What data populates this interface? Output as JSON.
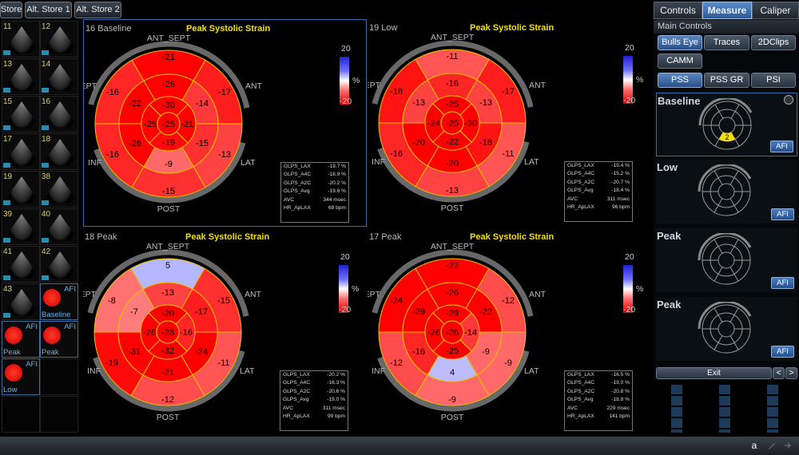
{
  "top_tabs": [
    "Store",
    "Alt. Store 1",
    "Alt. Store 2"
  ],
  "thumbnails": {
    "numbers": [
      "11",
      "12",
      "13",
      "14",
      "15",
      "16",
      "17",
      "18",
      "19",
      "38",
      "39",
      "40",
      "41",
      "42",
      "43"
    ],
    "bulls": [
      {
        "num": "16",
        "label": "Baseline",
        "afi": "AFI"
      },
      {
        "num": "17",
        "label": "Peak",
        "afi": "AFI"
      },
      {
        "num": "18",
        "label": "Peak",
        "afi": "AFI"
      },
      {
        "num": "19",
        "label": "Low",
        "afi": "AFI"
      }
    ]
  },
  "quadrants": [
    {
      "header": "16  Baseline",
      "title": "Peak Systolic Strain",
      "scale_top": "20",
      "scale_unit": "%",
      "scale_bottom": "-20",
      "labels": {
        "top": "ANT_SEPT",
        "left_top": "SEPT",
        "right_top": "ANT",
        "left_bot": "INF",
        "right_bot": "LAT",
        "bottom": "POST"
      },
      "values": [
        "-21",
        "-17",
        "-13",
        "-15",
        "-16",
        "-16",
        "-26",
        "-14",
        "-15",
        "-9",
        "-26",
        "-22",
        "-30",
        "-21",
        "-19",
        "-25",
        "-25"
      ],
      "stats": [
        [
          "GLPS_LAX",
          "-19.7 %"
        ],
        [
          "GLPS_A4C",
          "-18.9 %"
        ],
        [
          "GLPS_A2C",
          "-20.2 %"
        ],
        [
          "GLPS_Avg",
          "-19.6 %"
        ],
        [
          "AVC",
          "344 msec"
        ],
        [
          "HR_ApLAX",
          "68 bpm"
        ]
      ]
    },
    {
      "header": "19  Low",
      "title": "Peak Systolic Strain",
      "scale_top": "20",
      "scale_unit": "%",
      "scale_bottom": "-20",
      "labels": {
        "top": "ANT_SEPT",
        "left_top": "SEPT",
        "right_top": "ANT",
        "left_bot": "INF",
        "right_bot": "LAT",
        "bottom": "POST"
      },
      "values": [
        "-11",
        "-17",
        "-11",
        "-13",
        "-16",
        "-18",
        "-16",
        "-13",
        "-18",
        "-20",
        "-20",
        "-13",
        "-25",
        "-30",
        "-22",
        "-24",
        "-25"
      ],
      "stats": [
        [
          "GLPS_LAX",
          "-19.4 %"
        ],
        [
          "GLPS_A4C",
          "-15.2 %"
        ],
        [
          "GLPS_A2C",
          "-20.7 %"
        ],
        [
          "GLPS_Avg",
          "-18.4 %"
        ],
        [
          "AVC",
          "311 msec"
        ],
        [
          "HR_ApLAX",
          "96 bpm"
        ]
      ]
    },
    {
      "header": "18  Peak",
      "title": "Peak Systolic Strain",
      "scale_top": "20",
      "scale_unit": "%",
      "scale_bottom": "-20",
      "labels": {
        "top": "ANT_SEPT",
        "left_top": "SEPT",
        "right_top": "ANT",
        "left_bot": "INF",
        "right_bot": "LAT",
        "bottom": "POST"
      },
      "values": [
        "5",
        "-15",
        "-11",
        "-12",
        "-19",
        "-8",
        "-13",
        "-17",
        "-24",
        "-21",
        "-31",
        "-7",
        "-20",
        "-16",
        "-32",
        "-28",
        "-28"
      ],
      "stats": [
        [
          "GLPS_LAX",
          "-20.2 %"
        ],
        [
          "GLPS_A4C",
          "-16.3 %"
        ],
        [
          "GLPS_A2C",
          "-20.6 %"
        ],
        [
          "GLPS_Avg",
          "-19.0 %"
        ],
        [
          "AVC",
          "311 msec"
        ],
        [
          "HR_ApLAX",
          "99 bpm"
        ]
      ]
    },
    {
      "header": "17  Peak",
      "title": "Peak Systolic Strain",
      "scale_top": "20",
      "scale_unit": "%",
      "scale_bottom": "-20",
      "labels": {
        "top": "ANT_SEPT",
        "left_top": "SEPT",
        "right_top": "ANT",
        "left_bot": "INF",
        "right_bot": "LAT",
        "bottom": "POST"
      },
      "values": [
        "-22",
        "-12",
        "-9",
        "-9",
        "-12",
        "-24",
        "-26",
        "-22",
        "-9",
        "4",
        "-16",
        "-29",
        "-29",
        "-14",
        "-25",
        "-26",
        "-26"
      ],
      "stats": [
        [
          "GLPS_LAX",
          "-16.5 %"
        ],
        [
          "GLPS_A4C",
          "-19.0 %"
        ],
        [
          "GLPS_A2C",
          "-20.8 %"
        ],
        [
          "GLPS_Avg",
          "-18.8 %"
        ],
        [
          "AVC",
          "229 msec"
        ],
        [
          "HR_ApLAX",
          "141 bpm"
        ]
      ]
    }
  ],
  "right_panel": {
    "tabs": [
      "Controls",
      "Measure",
      "Caliper"
    ],
    "section": "Main Controls",
    "row1": [
      "Bulls Eye",
      "Traces",
      "2DClips"
    ],
    "row2": [
      "CAMM"
    ],
    "row3": [
      "PSS",
      "PSS GR",
      "PSI"
    ],
    "cards": [
      {
        "name": "Baseline",
        "afi": "AFI",
        "badge": "2"
      },
      {
        "name": "Low",
        "afi": "AFI"
      },
      {
        "name": "Peak",
        "afi": "AFI"
      },
      {
        "name": "Peak",
        "afi": "AFI"
      }
    ],
    "exit": "Exit",
    "prev": "<",
    "next": ">"
  },
  "status_letter": "a",
  "colors": {
    "accent": "#2a6fc0",
    "title": "#f5e000",
    "strain": "#e00000"
  }
}
